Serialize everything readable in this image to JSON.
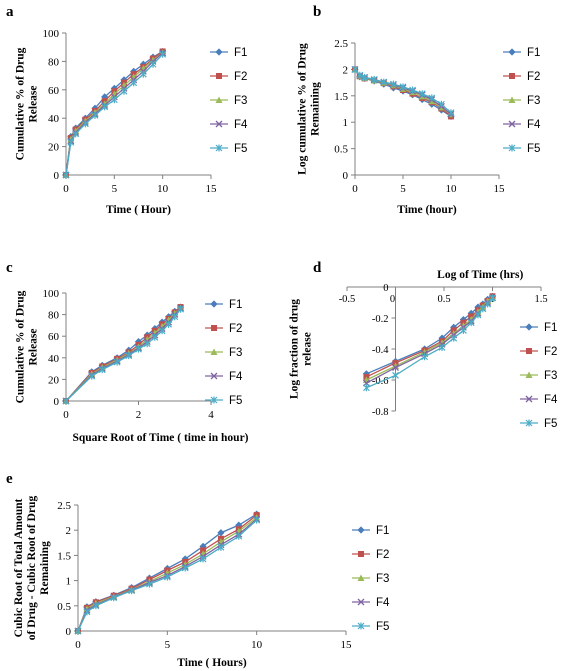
{
  "colors": {
    "F1": "#4a7ebb",
    "F2": "#c0504d",
    "F3": "#9bbb59",
    "F4": "#8064a2",
    "F5": "#4bacc6",
    "axis": "#808080",
    "text": "#000000"
  },
  "markers": {
    "F1": "diamond",
    "F2": "square",
    "F3": "triangle",
    "F4": "x",
    "F5": "asterisk"
  },
  "chart_data": [
    {
      "panel_letter": "a",
      "type": "line",
      "xlabel": "Time ( Hour)",
      "ylabel_lines": [
        "Cumulative % of Drug",
        "Release"
      ],
      "xlim": [
        0,
        15
      ],
      "ylim": [
        0,
        100
      ],
      "xticks": [
        0,
        5,
        10,
        15
      ],
      "yticks": [
        0,
        20,
        40,
        60,
        80,
        100
      ],
      "grid": false,
      "legend_position": "right",
      "series": [
        {
          "name": "F1",
          "x": [
            0,
            0.5,
            1,
            2,
            3,
            4,
            5,
            6,
            7,
            8,
            9,
            10
          ],
          "y": [
            0,
            27,
            33,
            40,
            47,
            55,
            61,
            67,
            73,
            78,
            83,
            87
          ]
        },
        {
          "name": "F2",
          "x": [
            0,
            0.5,
            1,
            2,
            3,
            4,
            5,
            6,
            7,
            8,
            9,
            10
          ],
          "y": [
            0,
            26,
            32,
            39,
            45,
            52,
            59,
            65,
            71,
            76,
            82,
            87
          ]
        },
        {
          "name": "F3",
          "x": [
            0,
            0.5,
            1,
            2,
            3,
            4,
            5,
            6,
            7,
            8,
            9,
            10
          ],
          "y": [
            0,
            25,
            31,
            38,
            44,
            50,
            57,
            63,
            69,
            75,
            81,
            86
          ]
        },
        {
          "name": "F4",
          "x": [
            0,
            0.5,
            1,
            2,
            3,
            4,
            5,
            6,
            7,
            8,
            9,
            10
          ],
          "y": [
            0,
            24,
            30,
            37,
            43,
            49,
            55,
            61,
            67,
            73,
            80,
            86
          ]
        },
        {
          "name": "F5",
          "x": [
            0,
            0.5,
            1,
            2,
            3,
            4,
            5,
            6,
            7,
            8,
            9,
            10
          ],
          "y": [
            0,
            23,
            29,
            36,
            42,
            48,
            53,
            59,
            65,
            71,
            78,
            85
          ]
        }
      ]
    },
    {
      "panel_letter": "b",
      "type": "line",
      "xlabel": "Time (hour)",
      "ylabel_lines": [
        "Log cumulative % of Drug",
        "Remaining"
      ],
      "xlim": [
        0,
        15
      ],
      "ylim": [
        0,
        2.5
      ],
      "xticks": [
        0,
        5,
        10,
        15
      ],
      "yticks": [
        0,
        0.5,
        1,
        1.5,
        2,
        2.5
      ],
      "grid": false,
      "legend_position": "right",
      "series": [
        {
          "name": "F1",
          "x": [
            0,
            0.5,
            1,
            2,
            3,
            4,
            5,
            6,
            7,
            8,
            9,
            10
          ],
          "y": [
            2,
            1.86,
            1.83,
            1.78,
            1.72,
            1.65,
            1.59,
            1.52,
            1.43,
            1.34,
            1.23,
            1.11
          ]
        },
        {
          "name": "F2",
          "x": [
            0,
            0.5,
            1,
            2,
            3,
            4,
            5,
            6,
            7,
            8,
            9,
            10
          ],
          "y": [
            2,
            1.87,
            1.83,
            1.79,
            1.74,
            1.68,
            1.61,
            1.54,
            1.46,
            1.38,
            1.26,
            1.11
          ]
        },
        {
          "name": "F3",
          "x": [
            0,
            0.5,
            1,
            2,
            3,
            4,
            5,
            6,
            7,
            8,
            9,
            10
          ],
          "y": [
            2,
            1.88,
            1.84,
            1.79,
            1.75,
            1.7,
            1.63,
            1.57,
            1.49,
            1.4,
            1.28,
            1.15
          ]
        },
        {
          "name": "F4",
          "x": [
            0,
            0.5,
            1,
            2,
            3,
            4,
            5,
            6,
            7,
            8,
            9,
            10
          ],
          "y": [
            2,
            1.88,
            1.85,
            1.8,
            1.76,
            1.71,
            1.65,
            1.59,
            1.52,
            1.43,
            1.3,
            1.15
          ]
        },
        {
          "name": "F5",
          "x": [
            0,
            0.5,
            1,
            2,
            3,
            4,
            5,
            6,
            7,
            8,
            9,
            10
          ],
          "y": [
            2,
            1.89,
            1.85,
            1.81,
            1.76,
            1.72,
            1.67,
            1.61,
            1.54,
            1.46,
            1.34,
            1.18
          ]
        }
      ]
    },
    {
      "panel_letter": "c",
      "type": "line",
      "xlabel": "Square Root of Time ( time in hour)",
      "ylabel_lines": [
        "Cumulative % of Drug",
        "Release"
      ],
      "xlim": [
        0,
        4
      ],
      "ylim": [
        0,
        100
      ],
      "xticks": [
        0,
        2,
        4
      ],
      "yticks": [
        0,
        20,
        40,
        60,
        80,
        100
      ],
      "grid": false,
      "legend_position": "right",
      "series": [
        {
          "name": "F1",
          "x": [
            0,
            0.71,
            1,
            1.41,
            1.73,
            2,
            2.24,
            2.45,
            2.65,
            2.83,
            3,
            3.16
          ],
          "y": [
            0,
            27,
            33,
            40,
            47,
            55,
            61,
            67,
            73,
            78,
            83,
            87
          ]
        },
        {
          "name": "F2",
          "x": [
            0,
            0.71,
            1,
            1.41,
            1.73,
            2,
            2.24,
            2.45,
            2.65,
            2.83,
            3,
            3.16
          ],
          "y": [
            0,
            26,
            32,
            39,
            45,
            52,
            59,
            65,
            71,
            76,
            82,
            87
          ]
        },
        {
          "name": "F3",
          "x": [
            0,
            0.71,
            1,
            1.41,
            1.73,
            2,
            2.24,
            2.45,
            2.65,
            2.83,
            3,
            3.16
          ],
          "y": [
            0,
            25,
            31,
            38,
            44,
            50,
            57,
            63,
            69,
            75,
            81,
            86
          ]
        },
        {
          "name": "F4",
          "x": [
            0,
            0.71,
            1,
            1.41,
            1.73,
            2,
            2.24,
            2.45,
            2.65,
            2.83,
            3,
            3.16
          ],
          "y": [
            0,
            24,
            30,
            37,
            43,
            49,
            55,
            61,
            67,
            73,
            80,
            86
          ]
        },
        {
          "name": "F5",
          "x": [
            0,
            0.71,
            1,
            1.41,
            1.73,
            2,
            2.24,
            2.45,
            2.65,
            2.83,
            3,
            3.16
          ],
          "y": [
            0,
            23,
            29,
            36,
            42,
            48,
            53,
            59,
            65,
            71,
            78,
            85
          ]
        }
      ]
    },
    {
      "panel_letter": "d",
      "type": "line",
      "xlabel": "Log of Time (hrs)",
      "xlabel_position": "top",
      "ylabel_lines": [
        "Log fraction of drug",
        "release"
      ],
      "xlim": [
        -0.5,
        1.5
      ],
      "ylim": [
        -0.8,
        0
      ],
      "xticks": [
        -0.5,
        0,
        0.5,
        1,
        1.5
      ],
      "yticks": [
        0,
        -0.2,
        -0.4,
        -0.6,
        -0.8
      ],
      "xtick_labels": [
        "-0.5",
        "0",
        "0.5",
        "1",
        "1.5"
      ],
      "ytick_labels": [
        "0",
        "-0.2",
        "-0.4",
        "-0.6",
        "-0.8"
      ],
      "grid": false,
      "legend_position": "right",
      "series": [
        {
          "name": "F1",
          "x": [
            -0.3,
            0,
            0.3,
            0.48,
            0.6,
            0.7,
            0.78,
            0.85,
            0.9,
            0.95,
            1
          ],
          "y": [
            -0.56,
            -0.48,
            -0.4,
            -0.33,
            -0.26,
            -0.21,
            -0.17,
            -0.13,
            -0.11,
            -0.08,
            -0.06
          ]
        },
        {
          "name": "F2",
          "x": [
            -0.3,
            0,
            0.3,
            0.48,
            0.6,
            0.7,
            0.78,
            0.85,
            0.9,
            0.95,
            1
          ],
          "y": [
            -0.58,
            -0.49,
            -0.41,
            -0.35,
            -0.28,
            -0.23,
            -0.19,
            -0.15,
            -0.12,
            -0.09,
            -0.06
          ]
        },
        {
          "name": "F3",
          "x": [
            -0.3,
            0,
            0.3,
            0.48,
            0.6,
            0.7,
            0.78,
            0.85,
            0.9,
            0.95,
            1
          ],
          "y": [
            -0.6,
            -0.51,
            -0.42,
            -0.36,
            -0.3,
            -0.25,
            -0.21,
            -0.16,
            -0.13,
            -0.09,
            -0.07
          ]
        },
        {
          "name": "F4",
          "x": [
            -0.3,
            0,
            0.3,
            0.48,
            0.6,
            0.7,
            0.78,
            0.85,
            0.9,
            0.95,
            1
          ],
          "y": [
            -0.62,
            -0.52,
            -0.43,
            -0.37,
            -0.31,
            -0.26,
            -0.22,
            -0.17,
            -0.14,
            -0.1,
            -0.07
          ]
        },
        {
          "name": "F5",
          "x": [
            -0.3,
            0,
            0.3,
            0.48,
            0.6,
            0.7,
            0.78,
            0.85,
            0.9,
            0.95,
            1
          ],
          "y": [
            -0.65,
            -0.57,
            -0.45,
            -0.39,
            -0.33,
            -0.28,
            -0.23,
            -0.18,
            -0.14,
            -0.11,
            -0.07
          ]
        }
      ]
    },
    {
      "panel_letter": "e",
      "type": "line",
      "xlabel": "Time ( Hours)",
      "ylabel_lines": [
        "Cubic Root of Total Amount",
        "of Drug - Cubic Root of Drug",
        "Remaining"
      ],
      "xlim": [
        0,
        15
      ],
      "ylim": [
        0,
        2.5
      ],
      "xticks": [
        0,
        5,
        10,
        15
      ],
      "yticks": [
        0,
        0.5,
        1,
        1.5,
        2,
        2.5
      ],
      "grid": false,
      "legend_position": "right",
      "series": [
        {
          "name": "F1",
          "x": [
            0,
            0.5,
            1,
            2,
            3,
            4,
            5,
            6,
            7,
            8,
            9,
            10
          ],
          "y": [
            0,
            0.48,
            0.58,
            0.71,
            0.86,
            1.05,
            1.24,
            1.43,
            1.68,
            1.95,
            2.1,
            2.32
          ]
        },
        {
          "name": "F2",
          "x": [
            0,
            0.5,
            1,
            2,
            3,
            4,
            5,
            6,
            7,
            8,
            9,
            10
          ],
          "y": [
            0,
            0.46,
            0.57,
            0.7,
            0.84,
            1.02,
            1.2,
            1.37,
            1.6,
            1.83,
            2.02,
            2.3
          ]
        },
        {
          "name": "F3",
          "x": [
            0,
            0.5,
            1,
            2,
            3,
            4,
            5,
            6,
            7,
            8,
            9,
            10
          ],
          "y": [
            0,
            0.44,
            0.55,
            0.68,
            0.82,
            0.98,
            1.15,
            1.32,
            1.53,
            1.77,
            1.98,
            2.25
          ]
        },
        {
          "name": "F4",
          "x": [
            0,
            0.5,
            1,
            2,
            3,
            4,
            5,
            6,
            7,
            8,
            9,
            10
          ],
          "y": [
            0,
            0.41,
            0.52,
            0.67,
            0.81,
            0.96,
            1.1,
            1.28,
            1.48,
            1.71,
            1.92,
            2.22
          ]
        },
        {
          "name": "F5",
          "x": [
            0,
            0.5,
            1,
            2,
            3,
            4,
            5,
            6,
            7,
            8,
            9,
            10
          ],
          "y": [
            0,
            0.38,
            0.5,
            0.66,
            0.8,
            0.93,
            1.07,
            1.25,
            1.43,
            1.66,
            1.88,
            2.2
          ]
        }
      ]
    }
  ]
}
